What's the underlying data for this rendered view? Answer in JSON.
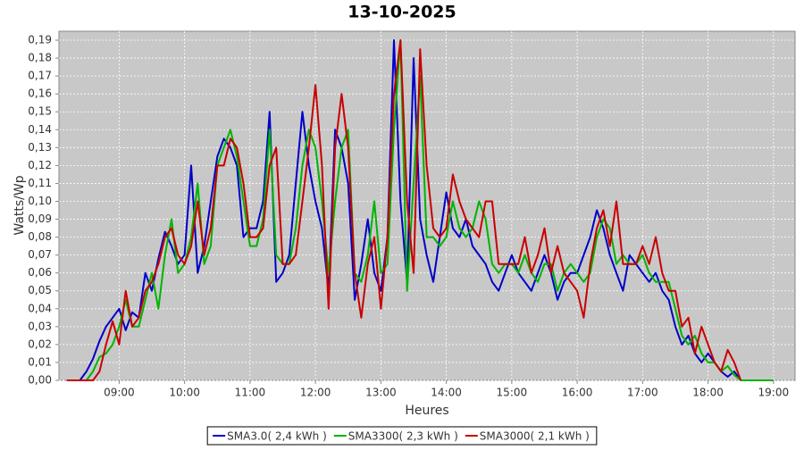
{
  "chart_data": {
    "type": "line",
    "title": "13-10-2025",
    "x_label": "Heures",
    "y_label": "Watts/Wp",
    "x": [
      8.2,
      8.3,
      8.4,
      8.5,
      8.6,
      8.7,
      8.8,
      8.9,
      9.0,
      9.1,
      9.2,
      9.3,
      9.4,
      9.5,
      9.6,
      9.7,
      9.8,
      9.9,
      10.0,
      10.1,
      10.2,
      10.3,
      10.4,
      10.5,
      10.6,
      10.7,
      10.8,
      10.9,
      11.0,
      11.1,
      11.2,
      11.3,
      11.4,
      11.5,
      11.6,
      11.7,
      11.8,
      11.9,
      12.0,
      12.1,
      12.2,
      12.3,
      12.4,
      12.5,
      12.6,
      12.7,
      12.8,
      12.9,
      13.0,
      13.1,
      13.2,
      13.3,
      13.4,
      13.5,
      13.6,
      13.7,
      13.8,
      13.9,
      14.0,
      14.1,
      14.2,
      14.3,
      14.4,
      14.5,
      14.6,
      14.7,
      14.8,
      14.9,
      15.0,
      15.1,
      15.2,
      15.3,
      15.4,
      15.5,
      15.6,
      15.7,
      15.8,
      15.9,
      16.0,
      16.1,
      16.2,
      16.3,
      16.4,
      16.5,
      16.6,
      16.7,
      16.8,
      16.9,
      17.0,
      17.1,
      17.2,
      17.3,
      17.4,
      17.5,
      17.6,
      17.7,
      17.8,
      17.9,
      18.0,
      18.1,
      18.2,
      18.3,
      18.4,
      18.5,
      18.6,
      18.7,
      18.8,
      18.9,
      19.0
    ],
    "series": [
      {
        "name": "SMA3.0( 2,4 kWh )",
        "color": "#0000c8",
        "values": [
          0,
          0,
          0,
          0.005,
          0.012,
          0.022,
          0.03,
          0.035,
          0.04,
          0.028,
          0.038,
          0.035,
          0.06,
          0.05,
          0.068,
          0.083,
          0.075,
          0.065,
          0.07,
          0.12,
          0.06,
          0.075,
          0.1,
          0.125,
          0.135,
          0.13,
          0.12,
          0.08,
          0.085,
          0.085,
          0.1,
          0.15,
          0.055,
          0.06,
          0.07,
          0.11,
          0.15,
          0.12,
          0.1,
          0.085,
          0.05,
          0.14,
          0.13,
          0.11,
          0.045,
          0.065,
          0.09,
          0.06,
          0.05,
          0.08,
          0.19,
          0.1,
          0.055,
          0.18,
          0.09,
          0.07,
          0.055,
          0.08,
          0.105,
          0.085,
          0.08,
          0.09,
          0.075,
          0.07,
          0.065,
          0.055,
          0.05,
          0.06,
          0.07,
          0.06,
          0.055,
          0.05,
          0.06,
          0.07,
          0.06,
          0.045,
          0.055,
          0.06,
          0.06,
          0.07,
          0.08,
          0.095,
          0.085,
          0.07,
          0.06,
          0.05,
          0.07,
          0.065,
          0.06,
          0.055,
          0.06,
          0.05,
          0.045,
          0.03,
          0.02,
          0.025,
          0.015,
          0.01,
          0.015,
          0.01,
          0.005,
          0.002,
          0.005,
          0,
          null,
          null,
          null,
          null,
          null
        ]
      },
      {
        "name": "SMA3300( 2,3 kWh )",
        "color": "#00b400",
        "values": [
          0,
          0,
          0,
          0,
          0.005,
          0.013,
          0.015,
          0.02,
          0.03,
          0.045,
          0.03,
          0.03,
          0.045,
          0.06,
          0.04,
          0.07,
          0.09,
          0.06,
          0.065,
          0.08,
          0.11,
          0.065,
          0.075,
          0.12,
          0.13,
          0.14,
          0.125,
          0.1,
          0.075,
          0.075,
          0.09,
          0.14,
          0.07,
          0.065,
          0.065,
          0.085,
          0.12,
          0.14,
          0.13,
          0.1,
          0.06,
          0.1,
          0.13,
          0.14,
          0.06,
          0.055,
          0.07,
          0.1,
          0.06,
          0.065,
          0.14,
          0.19,
          0.05,
          0.11,
          0.17,
          0.08,
          0.08,
          0.075,
          0.08,
          0.1,
          0.085,
          0.08,
          0.085,
          0.1,
          0.09,
          0.065,
          0.06,
          0.065,
          0.065,
          0.06,
          0.07,
          0.06,
          0.055,
          0.065,
          0.065,
          0.05,
          0.06,
          0.065,
          0.06,
          0.055,
          0.06,
          0.08,
          0.09,
          0.085,
          0.065,
          0.07,
          0.065,
          0.065,
          0.07,
          0.06,
          0.055,
          0.055,
          0.055,
          0.04,
          0.025,
          0.02,
          0.025,
          0.015,
          0.01,
          0.01,
          0.005,
          0.008,
          0.003,
          0,
          0,
          0,
          0,
          0,
          0
        ]
      },
      {
        "name": "SMA3000( 2,1 kWh )",
        "color": "#c80000",
        "values": [
          0,
          0,
          0,
          0,
          0,
          0.005,
          0.02,
          0.033,
          0.02,
          0.05,
          0.03,
          0.035,
          0.05,
          0.055,
          0.065,
          0.08,
          0.085,
          0.07,
          0.065,
          0.075,
          0.1,
          0.07,
          0.085,
          0.12,
          0.12,
          0.135,
          0.13,
          0.11,
          0.08,
          0.08,
          0.085,
          0.12,
          0.13,
          0.065,
          0.065,
          0.07,
          0.1,
          0.13,
          0.165,
          0.12,
          0.04,
          0.13,
          0.16,
          0.13,
          0.06,
          0.035,
          0.065,
          0.08,
          0.04,
          0.08,
          0.16,
          0.19,
          0.1,
          0.06,
          0.185,
          0.12,
          0.085,
          0.08,
          0.085,
          0.115,
          0.1,
          0.09,
          0.085,
          0.08,
          0.1,
          0.1,
          0.065,
          0.065,
          0.065,
          0.065,
          0.08,
          0.06,
          0.07,
          0.085,
          0.06,
          0.075,
          0.06,
          0.055,
          0.05,
          0.035,
          0.065,
          0.085,
          0.095,
          0.075,
          0.1,
          0.065,
          0.065,
          0.065,
          0.075,
          0.065,
          0.08,
          0.06,
          0.05,
          0.05,
          0.03,
          0.035,
          0.015,
          0.03,
          0.02,
          0.01,
          0.005,
          0.017,
          0.01,
          0,
          null,
          null,
          null,
          null,
          null
        ]
      }
    ],
    "xlim": [
      8.08,
      19.33
    ],
    "ylim": [
      0,
      0.195
    ],
    "xticks": [
      {
        "value": 9,
        "label": "09:00"
      },
      {
        "value": 10,
        "label": "10:00"
      },
      {
        "value": 11,
        "label": "11:00"
      },
      {
        "value": 12,
        "label": "12:00"
      },
      {
        "value": 13,
        "label": "13:00"
      },
      {
        "value": 14,
        "label": "14:00"
      },
      {
        "value": 15,
        "label": "15:00"
      },
      {
        "value": 16,
        "label": "16:00"
      },
      {
        "value": 17,
        "label": "17:00"
      },
      {
        "value": 18,
        "label": "18:00"
      },
      {
        "value": 19,
        "label": "19:00"
      }
    ],
    "yticks": [
      {
        "value": 0,
        "label": "0,00"
      },
      {
        "value": 0.01,
        "label": "0,01"
      },
      {
        "value": 0.02,
        "label": "0,02"
      },
      {
        "value": 0.03,
        "label": "0,03"
      },
      {
        "value": 0.04,
        "label": "0,04"
      },
      {
        "value": 0.05,
        "label": "0,05"
      },
      {
        "value": 0.06,
        "label": "0,06"
      },
      {
        "value": 0.07,
        "label": "0,07"
      },
      {
        "value": 0.08,
        "label": "0,08"
      },
      {
        "value": 0.09,
        "label": "0,09"
      },
      {
        "value": 0.1,
        "label": "0,10"
      },
      {
        "value": 0.11,
        "label": "0,11"
      },
      {
        "value": 0.12,
        "label": "0,12"
      },
      {
        "value": 0.13,
        "label": "0,13"
      },
      {
        "value": 0.14,
        "label": "0,14"
      },
      {
        "value": 0.15,
        "label": "0,15"
      },
      {
        "value": 0.16,
        "label": "0,16"
      },
      {
        "value": 0.17,
        "label": "0,17"
      },
      {
        "value": 0.18,
        "label": "0,18"
      },
      {
        "value": 0.19,
        "label": "0,19"
      }
    ],
    "grid": true,
    "plot_background": "#c8c8c8",
    "legend": "bottom"
  }
}
